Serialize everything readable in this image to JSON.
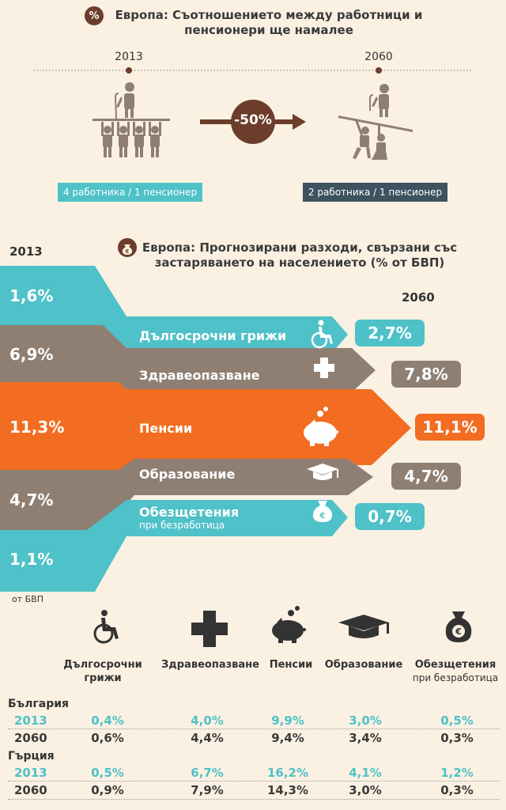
{
  "section1": {
    "icon": "percent-icon",
    "icon_text": "%",
    "title_line1": "Европа: Съотношението между работници и",
    "title_line2": "пенсионери ще намалее",
    "year_start": "2013",
    "year_end": "2060",
    "change": "-50%",
    "ratio_start": "4 работника / 1 пенсионер",
    "ratio_end": "2 работника / 1 пенсионер"
  },
  "section2": {
    "icon": "money-bag-icon",
    "title_line1": "Европа: Прогнозирани разходи, свързани със",
    "title_line2": "застаряването на населението (% от БВП)",
    "year_start": "2013",
    "year_end": "2060",
    "unit_note": "от БВП",
    "flows": [
      {
        "label": "Дългосрочни грижи",
        "sub": "",
        "value_2013": "1,6%",
        "value_2060": "2,7%",
        "icon": "wheelchair-icon",
        "color": "#4fc1c8"
      },
      {
        "label": "Здравеопазване",
        "sub": "",
        "value_2013": "6,9%",
        "value_2060": "7,8%",
        "icon": "medical-cross-icon",
        "color": "#8f7f73"
      },
      {
        "label": "Пенсии",
        "sub": "",
        "value_2013": "11,3%",
        "value_2060": "11,1%",
        "icon": "piggy-bank-icon",
        "color": "#f26d21"
      },
      {
        "label": "Образование",
        "sub": "",
        "value_2013": "4,7%",
        "value_2060": "4,7%",
        "icon": "graduation-cap-icon",
        "color": "#8f7f73"
      },
      {
        "label": "Обезщетения",
        "sub": "при безработица",
        "value_2013": "1,1%",
        "value_2060": "0,7%",
        "icon": "money-bag-icon",
        "color": "#4fc1c8"
      }
    ]
  },
  "section3": {
    "categories": [
      {
        "label": "Дългосрочни",
        "label2": "грижи",
        "sub": "",
        "icon": "wheelchair-icon"
      },
      {
        "label": "Здравеопазване",
        "label2": "",
        "sub": "",
        "icon": "medical-cross-icon"
      },
      {
        "label": "Пенсии",
        "label2": "",
        "sub": "",
        "icon": "piggy-bank-icon"
      },
      {
        "label": "Образование",
        "label2": "",
        "sub": "",
        "icon": "graduation-cap-icon"
      },
      {
        "label": "Обезщетения",
        "label2": "",
        "sub": "при безработица",
        "icon": "money-bag-icon"
      }
    ],
    "countries": [
      {
        "name": "България",
        "rows": [
          {
            "year": "2013",
            "values": [
              "0,4%",
              "4,0%",
              "9,9%",
              "3,0%",
              "0,5%"
            ]
          },
          {
            "year": "2060",
            "values": [
              "0,6%",
              "4,4%",
              "9,4%",
              "3,4%",
              "0,3%"
            ]
          }
        ]
      },
      {
        "name": "Гърция",
        "rows": [
          {
            "year": "2013",
            "values": [
              "0,5%",
              "6,7%",
              "16,2%",
              "4,1%",
              "1,2%"
            ]
          },
          {
            "year": "2060",
            "values": [
              "0,9%",
              "7,9%",
              "14,3%",
              "3,0%",
              "0,3%"
            ]
          }
        ]
      }
    ]
  },
  "colors": {
    "teal": "#4fc1c8",
    "taupe": "#8f7f73",
    "orange": "#f26d21",
    "brown": "#6b3d2a",
    "navy": "#3e5260",
    "background": "#faf1e3"
  }
}
